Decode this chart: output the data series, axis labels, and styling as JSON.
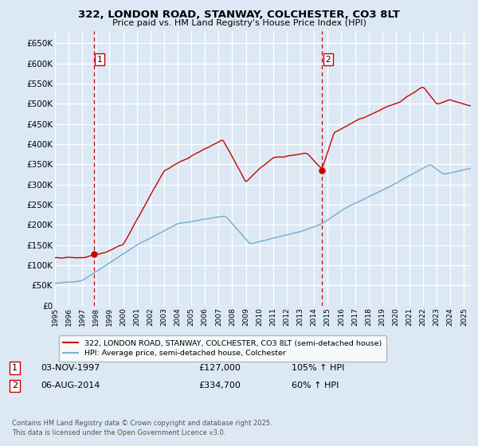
{
  "title": "322, LONDON ROAD, STANWAY, COLCHESTER, CO3 8LT",
  "subtitle": "Price paid vs. HM Land Registry's House Price Index (HPI)",
  "bg_color": "#dce9f5",
  "plot_bg_color": "#dce9f5",
  "hpi_line_color": "#7ab0d4",
  "price_line_color": "#cc0000",
  "vline_color": "#cc0000",
  "grid_color": "#ffffff",
  "ylim": [
    0,
    680000
  ],
  "yticks": [
    0,
    50000,
    100000,
    150000,
    200000,
    250000,
    300000,
    350000,
    400000,
    450000,
    500000,
    550000,
    600000,
    650000
  ],
  "xlim_start": 1995.0,
  "xlim_end": 2025.5,
  "transaction1_date": 1997.84,
  "transaction1_price": 127000,
  "transaction1_label": "1",
  "transaction2_date": 2014.59,
  "transaction2_price": 334700,
  "transaction2_label": "2",
  "legend_label_price": "322, LONDON ROAD, STANWAY, COLCHESTER, CO3 8LT (semi-detached house)",
  "legend_label_hpi": "HPI: Average price, semi-detached house, Colchester",
  "note1_label": "1",
  "note1_date": "03-NOV-1997",
  "note1_price": "£127,000",
  "note1_pct": "105% ↑ HPI",
  "note2_label": "2",
  "note2_date": "06-AUG-2014",
  "note2_price": "£334,700",
  "note2_pct": "60% ↑ HPI",
  "footer": "Contains HM Land Registry data © Crown copyright and database right 2025.\nThis data is licensed under the Open Government Licence v3.0."
}
